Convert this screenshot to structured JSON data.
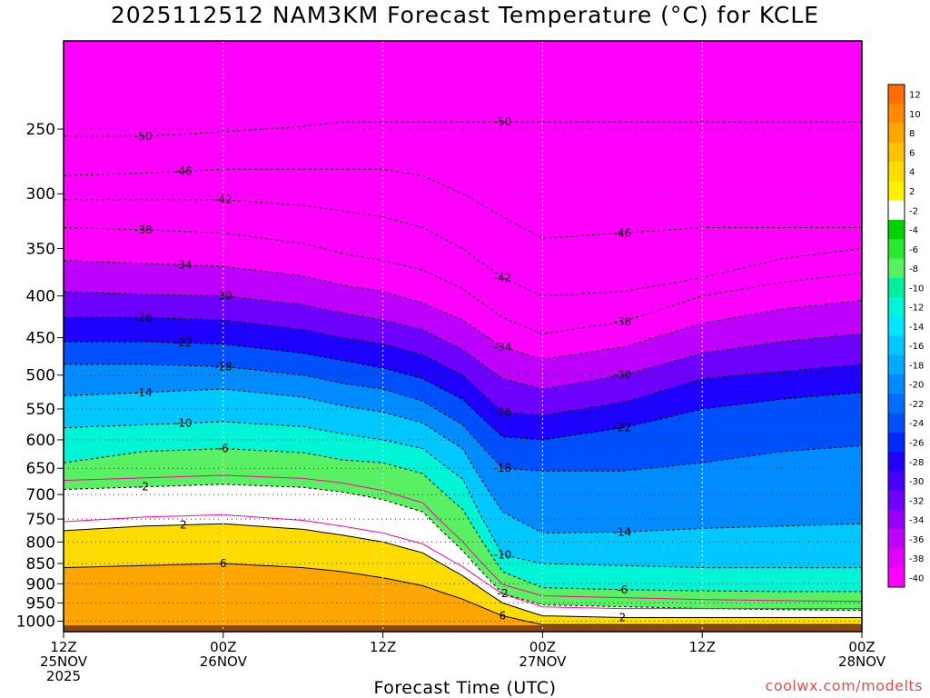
{
  "page": {
    "title": "2025112512 NAM3KM Forecast Temperature (°C) for KCLE",
    "watermark": "coolwx.com/modelts"
  },
  "chart_data": {
    "type": "heatmap",
    "title": "2025112512 NAM3KM Forecast Temperature (°C) for KCLE",
    "xlabel": "Forecast Time (UTC)",
    "ylabel": "",
    "x_range_hours": [
      0,
      60
    ],
    "y_log_scale": true,
    "y_range": [
      1030,
      195
    ],
    "y_inverted": true,
    "grid": true,
    "legend_placement": "right",
    "y_ticks": [
      {
        "label": "250",
        "value": 250
      },
      {
        "label": "300",
        "value": 300
      },
      {
        "label": "350",
        "value": 350
      },
      {
        "label": "400",
        "value": 400
      },
      {
        "label": "450",
        "value": 450
      },
      {
        "label": "500",
        "value": 500
      },
      {
        "label": "550",
        "value": 550
      },
      {
        "label": "600",
        "value": 600
      },
      {
        "label": "650",
        "value": 650
      },
      {
        "label": "700",
        "value": 700
      },
      {
        "label": "750",
        "value": 750
      },
      {
        "label": "800",
        "value": 800
      },
      {
        "label": "850",
        "value": 850
      },
      {
        "label": "900",
        "value": 900
      },
      {
        "label": "950",
        "value": 950
      },
      {
        "label": "1000",
        "value": 1000
      }
    ],
    "x_ticks": [
      {
        "hour": 0,
        "lines": [
          "12Z",
          "25NOV",
          "2025"
        ]
      },
      {
        "hour": 12,
        "lines": [
          "00Z",
          "26NOV"
        ]
      },
      {
        "hour": 24,
        "lines": [
          "12Z"
        ]
      },
      {
        "hour": 36,
        "lines": [
          "00Z",
          "27NOV"
        ]
      },
      {
        "hour": 48,
        "lines": [
          "12Z"
        ]
      },
      {
        "hour": 60,
        "lines": [
          "00Z",
          "28NOV"
        ]
      }
    ],
    "colorbar": [
      {
        "label": "12",
        "color": "#ff6e00"
      },
      {
        "label": "10",
        "color": "#ff8c00"
      },
      {
        "label": "8",
        "color": "#ffa500"
      },
      {
        "label": "6",
        "color": "#ffc200"
      },
      {
        "label": "4",
        "color": "#ffdc00"
      },
      {
        "label": "2",
        "color": "#fff000"
      },
      {
        "label": "-2",
        "color": "#ffffff"
      },
      {
        "label": "-4",
        "color": "#00d400"
      },
      {
        "label": "-6",
        "color": "#29e82d"
      },
      {
        "label": "-8",
        "color": "#5af064"
      },
      {
        "label": "-10",
        "color": "#00f0a0"
      },
      {
        "label": "-12",
        "color": "#00f5d7"
      },
      {
        "label": "-14",
        "color": "#00e6ff"
      },
      {
        "label": "-16",
        "color": "#00c8ff"
      },
      {
        "label": "-18",
        "color": "#00aaff"
      },
      {
        "label": "-20",
        "color": "#008cff"
      },
      {
        "label": "-22",
        "color": "#006eff"
      },
      {
        "label": "-24",
        "color": "#0050ff"
      },
      {
        "label": "-26",
        "color": "#0028ff"
      },
      {
        "label": "-28",
        "color": "#1e00ff"
      },
      {
        "label": "-30",
        "color": "#4600ff"
      },
      {
        "label": "-32",
        "color": "#6e00ff"
      },
      {
        "label": "-34",
        "color": "#9600ff"
      },
      {
        "label": "-36",
        "color": "#be00ff"
      },
      {
        "label": "-38",
        "color": "#e100ff"
      },
      {
        "label": "-40",
        "color": "#ff00ff"
      }
    ],
    "ground_color": "#8b4513",
    "plus_contour_color": "#ff00a0",
    "temperature_profile_hours": [
      0,
      6,
      12,
      18,
      21,
      24,
      27,
      30,
      33,
      36,
      42,
      48,
      54,
      60
    ],
    "isotherms": [
      {
        "temp": -50,
        "label": "-50",
        "pressures": [
          255,
          255,
          252,
          248,
          245,
          245,
          245,
          245,
          245,
          245,
          245,
          245,
          245,
          245
        ]
      },
      {
        "temp": -46,
        "label": "-46",
        "pressures": [
          285,
          283,
          280,
          280,
          280,
          280,
          285,
          300,
          320,
          340,
          335,
          330,
          330,
          330
        ]
      },
      {
        "temp": -42,
        "label": "-42",
        "pressures": [
          305,
          305,
          305,
          310,
          315,
          320,
          330,
          350,
          380,
          400,
          395,
          380,
          360,
          350
        ]
      },
      {
        "temp": -38,
        "label": "-38",
        "pressures": [
          330,
          332,
          335,
          345,
          355,
          362,
          372,
          392,
          425,
          445,
          430,
          400,
          385,
          375
        ]
      },
      {
        "temp": -34,
        "label": "-34",
        "pressures": [
          362,
          365,
          368,
          378,
          388,
          395,
          408,
          428,
          462,
          478,
          462,
          432,
          415,
          405
        ]
      },
      {
        "temp": -30,
        "label": "-30",
        "pressures": [
          395,
          398,
          400,
          410,
          420,
          428,
          440,
          465,
          505,
          520,
          500,
          470,
          455,
          445
        ]
      },
      {
        "temp": -26,
        "label": "-26",
        "pressures": [
          425,
          425,
          428,
          440,
          450,
          458,
          472,
          500,
          555,
          560,
          540,
          505,
          495,
          485
        ]
      },
      {
        "temp": -22,
        "label": "-22",
        "pressures": [
          455,
          455,
          458,
          470,
          480,
          490,
          505,
          535,
          595,
          600,
          580,
          550,
          535,
          525
        ]
      },
      {
        "temp": -18,
        "label": "-18",
        "pressures": [
          485,
          485,
          488,
          500,
          512,
          520,
          538,
          575,
          650,
          655,
          655,
          640,
          620,
          610
        ]
      },
      {
        "temp": -14,
        "label": "-14",
        "pressures": [
          530,
          525,
          520,
          532,
          545,
          555,
          572,
          615,
          735,
          780,
          778,
          770,
          765,
          760
        ]
      },
      {
        "temp": -10,
        "label": "-10",
        "pressures": [
          580,
          575,
          570,
          578,
          590,
          600,
          615,
          670,
          830,
          850,
          855,
          860,
          860,
          860
        ]
      },
      {
        "temp": -6,
        "label": "-6",
        "pressures": [
          640,
          620,
          615,
          622,
          635,
          640,
          660,
          730,
          870,
          910,
          915,
          918,
          920,
          920
        ]
      },
      {
        "temp": -2,
        "label": "-2",
        "pressures": [
          690,
          685,
          680,
          686,
          695,
          710,
          735,
          820,
          925,
          955,
          960,
          965,
          968,
          970
        ]
      },
      {
        "temp": 2,
        "label": "2",
        "pressures": [
          775,
          765,
          760,
          772,
          785,
          800,
          825,
          880,
          950,
          985,
          990,
          990,
          990,
          990
        ]
      },
      {
        "temp": 6,
        "label": "6",
        "pressures": [
          860,
          855,
          850,
          860,
          870,
          885,
          905,
          940,
          985,
          1010,
          1010,
          1010,
          1010,
          1010
        ]
      }
    ]
  }
}
